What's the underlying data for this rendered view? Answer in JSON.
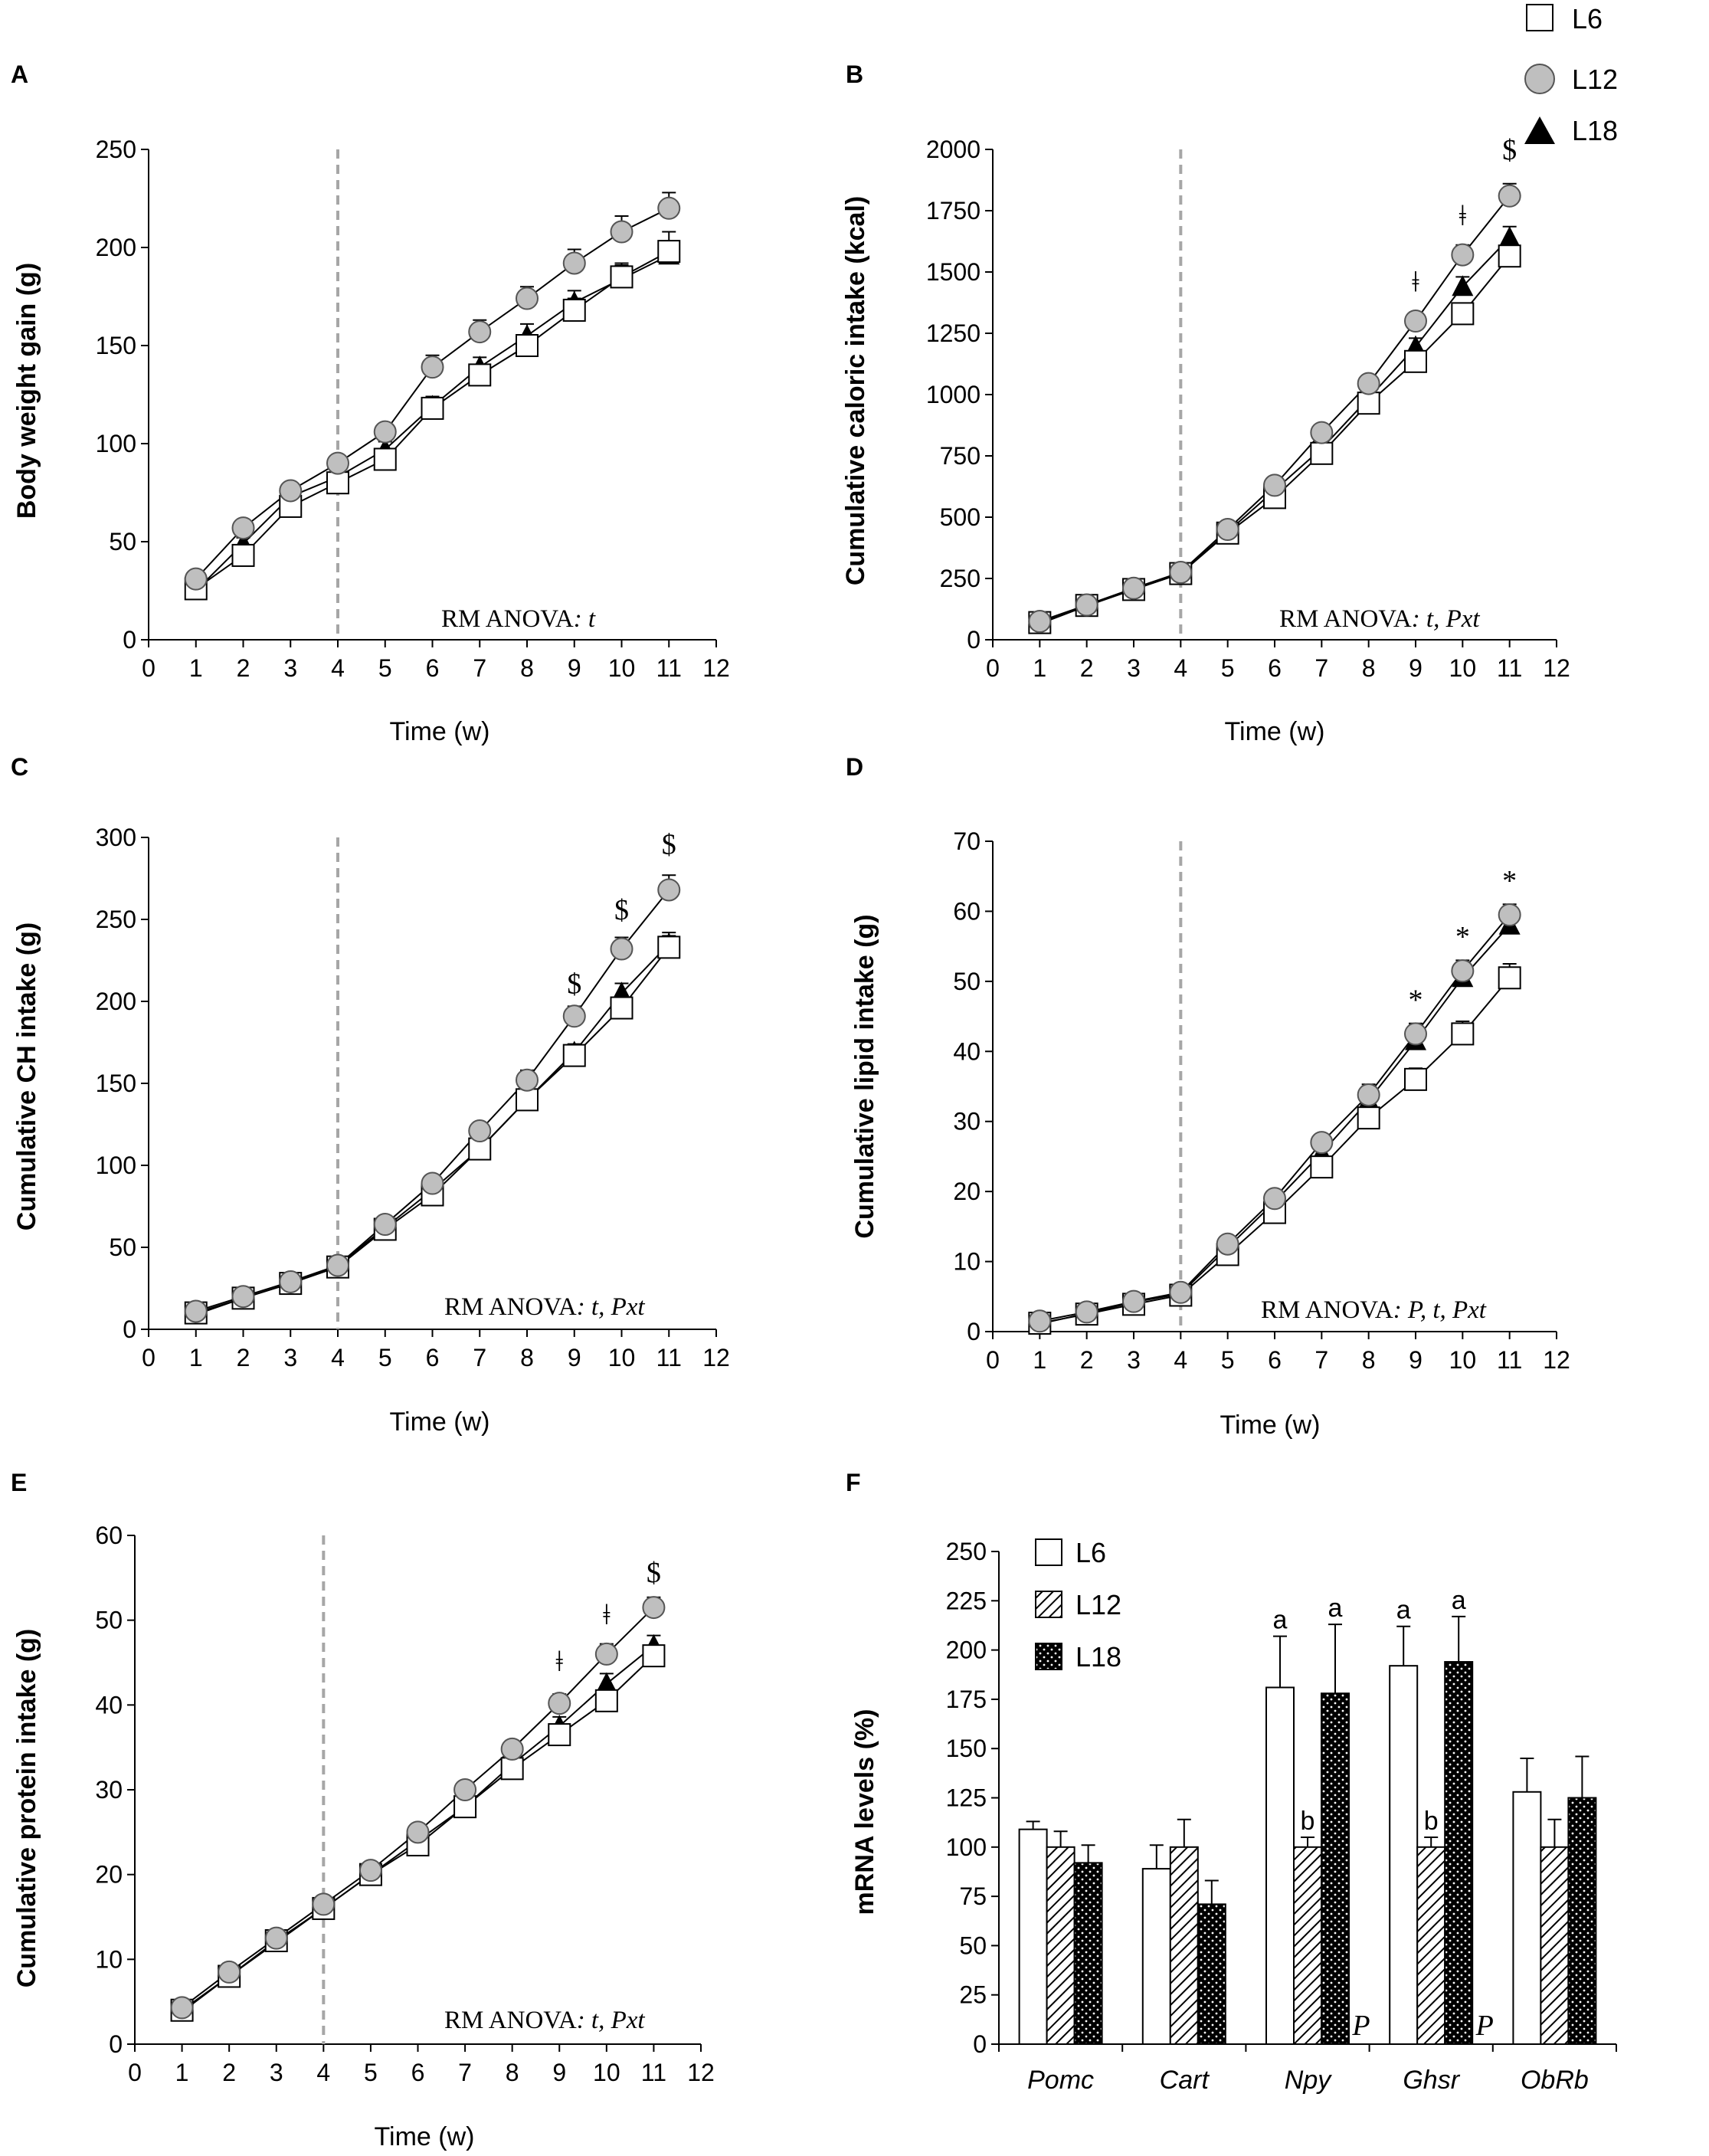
{
  "legend": {
    "items": [
      {
        "label": "L6",
        "marker": "square"
      },
      {
        "label": "L12",
        "marker": "circle"
      },
      {
        "label": "L18",
        "marker": "triangle"
      }
    ]
  },
  "colors": {
    "L6_fill": "#ffffff",
    "L12_fill": "#bfbfbf",
    "L18_fill": "#000000",
    "dashed_line": "#a6a6a6",
    "axis": "#000000"
  },
  "chart_data": [
    {
      "id": "A",
      "type": "line",
      "letter": "A",
      "ylabel": "Body weight gain (g)",
      "xlabel": "Time (w)",
      "xlim": [
        0,
        12
      ],
      "ylim": [
        0,
        250
      ],
      "yticks": [
        0,
        50,
        100,
        150,
        200,
        250
      ],
      "xticks": [
        0,
        1,
        2,
        3,
        4,
        5,
        6,
        7,
        8,
        9,
        10,
        11,
        12
      ],
      "dashed_x": 4,
      "x": [
        1,
        2,
        3,
        4,
        5,
        6,
        7,
        8,
        9,
        10,
        11
      ],
      "series": [
        {
          "name": "L6",
          "values": [
            26,
            43,
            68,
            80,
            92,
            118,
            135,
            150,
            168,
            185,
            198
          ],
          "errors": [
            2,
            3,
            3,
            3,
            4,
            5,
            5,
            5,
            6,
            7,
            10
          ]
        },
        {
          "name": "L12",
          "values": [
            31,
            57,
            76,
            90,
            106,
            139,
            157,
            174,
            192,
            208,
            220
          ],
          "errors": [
            2,
            3,
            3,
            3,
            4,
            6,
            6,
            6,
            7,
            8,
            8
          ]
        },
        {
          "name": "L18",
          "values": [
            25,
            49,
            73,
            83,
            97,
            119,
            139,
            155,
            172,
            184,
            196
          ],
          "errors": [
            2,
            3,
            3,
            3,
            4,
            5,
            5,
            6,
            6,
            7,
            7
          ]
        }
      ],
      "anova_prefix": "RM ANOVA",
      "anova_terms": ": t",
      "sig_marks": []
    },
    {
      "id": "B",
      "type": "line",
      "letter": "B",
      "ylabel": "Cumulative caloric intake (kcal)",
      "xlabel": "Time (w)",
      "xlim": [
        0,
        12
      ],
      "ylim": [
        0,
        2000
      ],
      "yticks": [
        0,
        250,
        500,
        750,
        1000,
        1250,
        1500,
        1750,
        2000
      ],
      "xticks": [
        0,
        1,
        2,
        3,
        4,
        5,
        6,
        7,
        8,
        9,
        10,
        11,
        12
      ],
      "dashed_x": 4,
      "x": [
        1,
        2,
        3,
        4,
        5,
        6,
        7,
        8,
        9,
        10,
        11
      ],
      "series": [
        {
          "name": "L6",
          "values": [
            70,
            140,
            205,
            270,
            435,
            580,
            760,
            965,
            1135,
            1330,
            1565
          ],
          "errors": [
            8,
            10,
            10,
            12,
            15,
            20,
            25,
            30,
            35,
            40,
            45
          ]
        },
        {
          "name": "L12",
          "values": [
            75,
            142,
            210,
            275,
            450,
            630,
            845,
            1045,
            1300,
            1570,
            1810
          ],
          "errors": [
            8,
            10,
            10,
            12,
            15,
            20,
            25,
            30,
            35,
            40,
            50
          ]
        },
        {
          "name": "L18",
          "values": [
            65,
            138,
            205,
            270,
            440,
            610,
            780,
            985,
            1195,
            1440,
            1640
          ],
          "errors": [
            8,
            10,
            10,
            12,
            15,
            20,
            25,
            30,
            35,
            40,
            45
          ]
        }
      ],
      "anova_prefix": "RM ANOVA",
      "anova_terms": ": t, Pxt",
      "sig_marks": [
        {
          "x": 9,
          "label": "ǂ",
          "value": 1420
        },
        {
          "x": 10,
          "label": "ǂ",
          "value": 1690
        },
        {
          "x": 11,
          "label": "$",
          "value": 1960
        }
      ]
    },
    {
      "id": "C",
      "type": "line",
      "letter": "C",
      "ylabel": "Cumulative CH intake (g)",
      "xlabel": "Time (w)",
      "xlim": [
        0,
        12
      ],
      "ylim": [
        0,
        300
      ],
      "yticks": [
        0,
        50,
        100,
        150,
        200,
        250,
        300
      ],
      "xticks": [
        0,
        1,
        2,
        3,
        4,
        5,
        6,
        7,
        8,
        9,
        10,
        11,
        12
      ],
      "dashed_x": 4,
      "x": [
        1,
        2,
        3,
        4,
        5,
        6,
        7,
        8,
        9,
        10,
        11
      ],
      "series": [
        {
          "name": "L6",
          "values": [
            10,
            19,
            28,
            38,
            61,
            82,
            110,
            140,
            167,
            196,
            233
          ],
          "errors": [
            1,
            1,
            1,
            2,
            2,
            3,
            4,
            5,
            5,
            6,
            7
          ]
        },
        {
          "name": "L12",
          "values": [
            11,
            20,
            29,
            39,
            64,
            89,
            121,
            152,
            191,
            232,
            268
          ],
          "errors": [
            1,
            1,
            1,
            2,
            2,
            3,
            4,
            6,
            6,
            7,
            9
          ]
        },
        {
          "name": "L18",
          "values": [
            9,
            19,
            28,
            39,
            62,
            85,
            110,
            140,
            169,
            205,
            235
          ],
          "errors": [
            1,
            1,
            1,
            2,
            2,
            3,
            4,
            5,
            5,
            6,
            7
          ]
        }
      ],
      "anova_prefix": "RM ANOVA",
      "anova_terms": ": t, Pxt",
      "sig_marks": [
        {
          "x": 9,
          "label": "$",
          "value": 205
        },
        {
          "x": 10,
          "label": "$",
          "value": 250
        },
        {
          "x": 11,
          "label": "$",
          "value": 290
        }
      ]
    },
    {
      "id": "D",
      "type": "line",
      "letter": "D",
      "ylabel": "Cumulative lipid intake (g)",
      "xlabel": "Time (w)",
      "xlim": [
        0,
        12
      ],
      "ylim": [
        0,
        70
      ],
      "yticks": [
        0,
        10,
        20,
        30,
        40,
        50,
        60,
        70
      ],
      "xticks": [
        0,
        1,
        2,
        3,
        4,
        5,
        6,
        7,
        8,
        9,
        10,
        11,
        12
      ],
      "dashed_x": 4,
      "x": [
        1,
        2,
        3,
        4,
        5,
        6,
        7,
        8,
        9,
        10,
        11
      ],
      "series": [
        {
          "name": "L6",
          "values": [
            1.2,
            2.5,
            3.9,
            5.2,
            11,
            17,
            23.5,
            30.5,
            36,
            42.5,
            50.5
          ],
          "errors": [
            0.3,
            0.3,
            0.4,
            0.5,
            0.8,
            1,
            1.2,
            1.4,
            1.6,
            1.8,
            2
          ]
        },
        {
          "name": "L12",
          "values": [
            1.5,
            2.8,
            4.3,
            5.6,
            12.5,
            19,
            27,
            33.8,
            42.5,
            51.5,
            59.5
          ],
          "errors": [
            0.3,
            0.3,
            0.4,
            0.5,
            0.8,
            1,
            1.2,
            1.5,
            1.5,
            1.5,
            1.5
          ]
        },
        {
          "name": "L18",
          "values": [
            1.1,
            2.6,
            4.2,
            5.4,
            12,
            18.5,
            25.5,
            33,
            41.5,
            50.5,
            58
          ],
          "errors": [
            0.3,
            0.3,
            0.4,
            0.5,
            0.8,
            1,
            1.2,
            1.4,
            1.5,
            1.5,
            1.5
          ]
        }
      ],
      "anova_prefix": "RM ANOVA",
      "anova_terms": ": P, t, Pxt",
      "sig_marks": [
        {
          "x": 9,
          "label": "*",
          "value": 46
        },
        {
          "x": 10,
          "label": "*",
          "value": 55
        },
        {
          "x": 11,
          "label": "*",
          "value": 63
        }
      ]
    },
    {
      "id": "E",
      "type": "line",
      "letter": "E",
      "ylabel": "Cumulative protein intake (g)",
      "xlabel": "Time (w)",
      "xlim": [
        0,
        12
      ],
      "ylim": [
        0,
        60
      ],
      "yticks": [
        0,
        10,
        20,
        30,
        40,
        50,
        60
      ],
      "xticks": [
        0,
        1,
        2,
        3,
        4,
        5,
        6,
        7,
        8,
        9,
        10,
        11,
        12
      ],
      "dashed_x": 4,
      "x": [
        1,
        2,
        3,
        4,
        5,
        6,
        7,
        8,
        9,
        10,
        11
      ],
      "series": [
        {
          "name": "L6",
          "values": [
            4,
            8,
            12.2,
            16,
            20,
            23.5,
            28,
            32.5,
            36.5,
            40.5,
            45.8
          ],
          "errors": [
            0.3,
            0.4,
            0.5,
            0.6,
            0.7,
            0.8,
            0.9,
            1,
            1.1,
            1.2,
            1.2
          ]
        },
        {
          "name": "L12",
          "values": [
            4.3,
            8.5,
            12.5,
            16.5,
            20.5,
            25,
            30,
            34.8,
            40.2,
            46,
            51.5
          ],
          "errors": [
            0.3,
            0.4,
            0.5,
            0.6,
            0.7,
            0.8,
            0.9,
            1,
            1.1,
            1.2,
            1.2
          ]
        },
        {
          "name": "L18",
          "values": [
            3.8,
            8,
            12,
            16,
            20,
            24,
            28,
            33,
            37.5,
            42.5,
            47
          ],
          "errors": [
            0.3,
            0.4,
            0.5,
            0.6,
            0.7,
            0.8,
            0.9,
            1,
            1.1,
            1.2,
            1.2
          ]
        }
      ],
      "anova_prefix": "RM ANOVA",
      "anova_terms": ": t, Pxt",
      "sig_marks": [
        {
          "x": 9,
          "label": "ǂ",
          "value": 44
        },
        {
          "x": 10,
          "label": "ǂ",
          "value": 49.5
        },
        {
          "x": 11,
          "label": "$",
          "value": 54.5
        }
      ]
    },
    {
      "id": "F",
      "type": "bar",
      "letter": "F",
      "ylabel": "mRNA levels (%)",
      "xlabel": "",
      "ylim": [
        0,
        250
      ],
      "yticks": [
        0,
        25,
        50,
        75,
        100,
        125,
        150,
        175,
        200,
        225,
        250
      ],
      "categories": [
        "Pomc",
        "Cart",
        "Npy",
        "Ghsr",
        "ObRb"
      ],
      "series": [
        {
          "name": "L6",
          "pattern": "white",
          "values": [
            109,
            89,
            181,
            192,
            128
          ],
          "errors": [
            4,
            12,
            26,
            20,
            17
          ]
        },
        {
          "name": "L12",
          "pattern": "hatch",
          "values": [
            100,
            100,
            100,
            100,
            100
          ],
          "errors": [
            8,
            14,
            5,
            5,
            14
          ]
        },
        {
          "name": "L18",
          "pattern": "dots",
          "values": [
            92,
            71,
            178,
            194,
            125
          ],
          "errors": [
            9,
            12,
            35,
            23,
            21
          ]
        }
      ],
      "bar_letters": [
        {
          "category": 2,
          "series": 0,
          "label": "a"
        },
        {
          "category": 2,
          "series": 1,
          "label": "b"
        },
        {
          "category": 2,
          "series": 2,
          "label": "a"
        },
        {
          "category": 3,
          "series": 0,
          "label": "a"
        },
        {
          "category": 3,
          "series": 1,
          "label": "b"
        },
        {
          "category": 3,
          "series": 2,
          "label": "a"
        }
      ],
      "p_labels": [
        {
          "after_category": 2,
          "label": "P"
        },
        {
          "after_category": 3,
          "label": "P"
        }
      ],
      "legend": [
        "L6",
        "L12",
        "L18"
      ]
    }
  ]
}
